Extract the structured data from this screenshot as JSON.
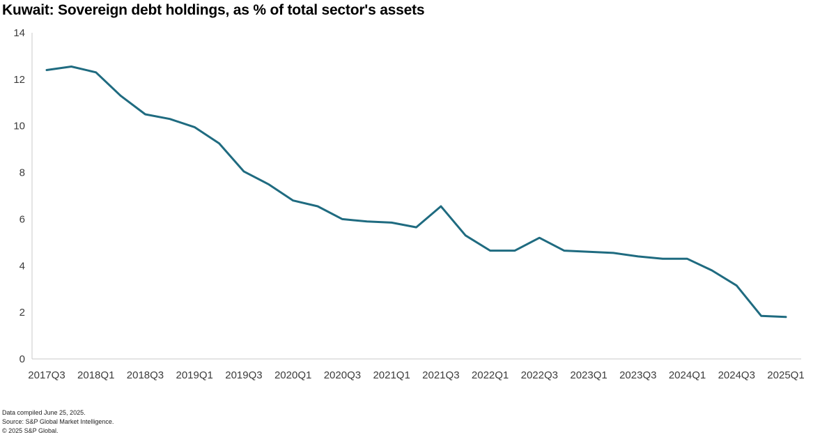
{
  "chart_data": {
    "type": "line",
    "title": "Kuwait: Sovereign debt holdings, as % of total sector's assets",
    "xlabel": "",
    "ylabel": "",
    "ylim": [
      0,
      14
    ],
    "yticks": [
      0,
      2,
      4,
      6,
      8,
      10,
      12,
      14
    ],
    "grid": false,
    "x": [
      "2017Q3",
      "2017Q4",
      "2018Q1",
      "2018Q2",
      "2018Q3",
      "2018Q4",
      "2019Q1",
      "2019Q2",
      "2019Q3",
      "2019Q4",
      "2020Q1",
      "2020Q2",
      "2020Q3",
      "2020Q4",
      "2021Q1",
      "2021Q2",
      "2021Q3",
      "2021Q4",
      "2022Q1",
      "2022Q2",
      "2022Q3",
      "2022Q4",
      "2023Q1",
      "2023Q2",
      "2023Q3",
      "2023Q4",
      "2024Q1",
      "2024Q2",
      "2024Q3",
      "2024Q4",
      "2025Q1"
    ],
    "xtick_labels": [
      "2017Q3",
      "2018Q1",
      "2018Q3",
      "2019Q1",
      "2019Q3",
      "2020Q1",
      "2020Q3",
      "2021Q1",
      "2021Q3",
      "2022Q1",
      "2022Q3",
      "2023Q1",
      "2023Q3",
      "2024Q1",
      "2024Q3",
      "2025Q1"
    ],
    "series": [
      {
        "name": "Sovereign debt holdings",
        "color": "#1f6b80",
        "values": [
          12.4,
          12.55,
          12.3,
          11.3,
          10.5,
          10.3,
          9.95,
          9.25,
          8.05,
          7.5,
          6.8,
          6.55,
          6.0,
          5.9,
          5.85,
          5.65,
          6.55,
          5.3,
          4.65,
          4.65,
          5.2,
          4.65,
          4.6,
          4.55,
          4.4,
          4.3,
          4.3,
          3.8,
          3.15,
          1.85,
          1.8
        ]
      }
    ]
  },
  "footer": {
    "line1": "Data compiled June 25, 2025.",
    "line2": "Source: S&P Global Market Intelligence.",
    "line3": "© 2025 S&P Global."
  }
}
